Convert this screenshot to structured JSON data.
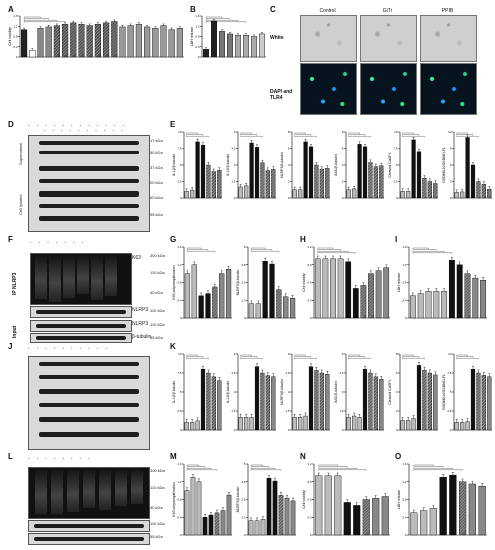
{
  "panels": {
    "A": {
      "letter": "A"
    },
    "B": {
      "letter": "B"
    },
    "C": {
      "letter": "C",
      "columns": [
        "Control",
        "GiTr",
        "PPIB"
      ],
      "rows": [
        "White",
        "DAPI and TLR4"
      ]
    },
    "D": {
      "letter": "D",
      "mw": [
        "17 kDa",
        "50 kDa",
        "37 kDa",
        "20 kDa",
        "60 kDa",
        "55 kDa"
      ],
      "sides": [
        "Supernatant",
        "Cell lysates"
      ]
    },
    "E": {
      "letter": "E"
    },
    "F": {
      "letter": "F",
      "mw": [
        "300 kDa",
        "110 kDa",
        "40 kDa",
        "110 kDa",
        "110 kDa",
        "55 kDa"
      ],
      "ip": "IP NLRP3",
      "input": "Input",
      "rows": [
        "K63",
        "NLRP3",
        "NLRP3",
        "β-tubulin"
      ]
    },
    "G": {
      "letter": "G"
    },
    "H": {
      "letter": "H"
    },
    "I": {
      "letter": "I"
    },
    "J": {
      "letter": "J"
    },
    "K": {
      "letter": "K"
    },
    "L": {
      "letter": "L",
      "mw": [
        "300 kDa",
        "110 kDa",
        "40 kDa",
        "110 kDa",
        "55 kDa"
      ]
    },
    "M": {
      "letter": "M"
    },
    "N": {
      "letter": "N"
    },
    "O": {
      "letter": "O"
    }
  },
  "chart_data": [
    {
      "id": "A",
      "type": "bar",
      "ylabel": "Cell viability",
      "ylim": [
        0,
        1.5
      ],
      "values": [
        1.0,
        0.25,
        1.05,
        1.1,
        1.15,
        1.2,
        1.25,
        1.2,
        1.15,
        1.2,
        1.25,
        1.3,
        1.1,
        1.15,
        1.2,
        1.1,
        1.05,
        1.15,
        1.0,
        1.05
      ],
      "colors": [
        "#222",
        "#fff",
        "#888",
        "#888",
        "#555",
        "#555",
        "#555",
        "#555",
        "#555",
        "#555",
        "#555",
        "#555",
        "#999",
        "#999",
        "#999",
        "#999",
        "#999",
        "#999",
        "#999",
        "#999"
      ]
    },
    {
      "id": "B",
      "type": "bar",
      "ylabel": "LDH release",
      "ylim": [
        0,
        1.6
      ],
      "values": [
        0.3,
        1.4,
        1.0,
        0.9,
        0.85,
        0.85,
        0.8,
        0.9
      ],
      "colors": [
        "#222",
        "#222",
        "#777",
        "#777",
        "#aaa",
        "#aaa",
        "#aaa",
        "#ccc"
      ]
    },
    {
      "id": "E1",
      "type": "bar",
      "ylabel": "IL-1β/β-tubulin",
      "ylim": [
        0,
        10
      ],
      "values": [
        1,
        1.2,
        8.5,
        8,
        5,
        4,
        4.2
      ],
      "colors": [
        "#bbb",
        "#bbb",
        "#111",
        "#111",
        "#666",
        "#666",
        "#666"
      ]
    },
    {
      "id": "E2",
      "type": "bar",
      "ylabel": "IL-18/β-tubulin",
      "ylim": [
        0,
        6
      ],
      "values": [
        1,
        1.1,
        5,
        4.6,
        3.2,
        2.5,
        2.6
      ],
      "colors": [
        "#bbb",
        "#bbb",
        "#111",
        "#111",
        "#666",
        "#666",
        "#666"
      ]
    },
    {
      "id": "E3",
      "type": "bar",
      "ylabel": "NLRP3/β-tubulin",
      "ylim": [
        0,
        8
      ],
      "values": [
        1,
        1,
        6.8,
        6.2,
        4,
        3.5,
        3.6
      ],
      "colors": [
        "#bbb",
        "#bbb",
        "#111",
        "#111",
        "#666",
        "#666",
        "#666"
      ]
    },
    {
      "id": "E4",
      "type": "bar",
      "ylabel": "ASC/β-tubulin",
      "ylim": [
        0,
        8
      ],
      "values": [
        1,
        1.1,
        6.5,
        6.2,
        4.3,
        3.8,
        3.9
      ],
      "colors": [
        "#bbb",
        "#bbb",
        "#111",
        "#111",
        "#666",
        "#666",
        "#666"
      ]
    },
    {
      "id": "E5",
      "type": "bar",
      "ylabel": "Cleaved CASP1",
      "ylim": [
        0,
        10
      ],
      "values": [
        1,
        1,
        8.8,
        7,
        3,
        2.5,
        2.2
      ],
      "colors": [
        "#bbb",
        "#bbb",
        "#111",
        "#111",
        "#666",
        "#666",
        "#666"
      ]
    },
    {
      "id": "E6",
      "type": "bar",
      "ylabel": "GSDMD-N/GSDMD-FL",
      "ylim": [
        0,
        12
      ],
      "values": [
        1,
        1.1,
        11,
        6,
        3,
        2.5,
        1.6
      ],
      "colors": [
        "#bbb",
        "#bbb",
        "#111",
        "#111",
        "#666",
        "#666",
        "#666"
      ]
    },
    {
      "id": "G1",
      "type": "bar",
      "ylabel": "K63 polyubiquitination",
      "ylim": [
        0,
        1.6
      ],
      "values": [
        1,
        1.2,
        0.5,
        0.55,
        0.7,
        1.0,
        1.1
      ],
      "colors": [
        "#bbb",
        "#bbb",
        "#111",
        "#111",
        "#666",
        "#888",
        "#888"
      ]
    },
    {
      "id": "G2",
      "type": "bar",
      "ylabel": "NLRP3/β-tubulin",
      "ylim": [
        0,
        5
      ],
      "values": [
        1,
        1,
        4,
        3.8,
        2,
        1.5,
        1.4
      ],
      "colors": [
        "#bbb",
        "#bbb",
        "#111",
        "#111",
        "#666",
        "#888",
        "#888"
      ]
    },
    {
      "id": "H",
      "type": "bar",
      "ylabel": "Cell viability",
      "ylim": [
        0,
        1.2
      ],
      "values": [
        1,
        1,
        1,
        1,
        0.95,
        0.5,
        0.55,
        0.75,
        0.8,
        0.85
      ],
      "colors": [
        "#bbb",
        "#bbb",
        "#bbb",
        "#bbb",
        "#111",
        "#111",
        "#666",
        "#666",
        "#888",
        "#888"
      ]
    },
    {
      "id": "I",
      "type": "bar",
      "ylabel": "LDH release",
      "ylim": [
        0,
        1.6
      ],
      "values": [
        0.5,
        0.55,
        0.6,
        0.6,
        0.6,
        1.3,
        1.2,
        1.0,
        0.9,
        0.85
      ],
      "colors": [
        "#bbb",
        "#bbb",
        "#bbb",
        "#bbb",
        "#bbb",
        "#111",
        "#111",
        "#666",
        "#888",
        "#888"
      ]
    },
    {
      "id": "K1",
      "type": "bar",
      "ylabel": "IL-1β/β-tubulin",
      "ylim": [
        0,
        10
      ],
      "values": [
        1,
        1,
        1.2,
        8,
        7.5,
        7,
        6.5
      ],
      "colors": [
        "#bbb",
        "#bbb",
        "#bbb",
        "#111",
        "#666",
        "#666",
        "#888"
      ]
    },
    {
      "id": "K2",
      "type": "bar",
      "ylabel": "IL-18/β-tubulin",
      "ylim": [
        0,
        6
      ],
      "values": [
        1,
        1,
        1,
        5,
        4.5,
        4.3,
        4.2
      ],
      "colors": [
        "#bbb",
        "#bbb",
        "#bbb",
        "#111",
        "#666",
        "#666",
        "#888"
      ]
    },
    {
      "id": "K3",
      "type": "bar",
      "ylabel": "NLRP3/β-tubulin",
      "ylim": [
        0,
        6
      ],
      "values": [
        1,
        1,
        1.1,
        5,
        4.7,
        4.5,
        4.4
      ],
      "colors": [
        "#bbb",
        "#bbb",
        "#bbb",
        "#111",
        "#666",
        "#666",
        "#888"
      ]
    },
    {
      "id": "K4",
      "type": "bar",
      "ylabel": "ASC/β-tubulin",
      "ylim": [
        0,
        6
      ],
      "values": [
        1,
        1.1,
        1,
        4.8,
        4.5,
        4.2,
        4.0
      ],
      "colors": [
        "#bbb",
        "#bbb",
        "#bbb",
        "#111",
        "#666",
        "#666",
        "#888"
      ]
    },
    {
      "id": "K5",
      "type": "bar",
      "ylabel": "Cleaved CASP1",
      "ylim": [
        0,
        8
      ],
      "values": [
        1,
        1,
        1.2,
        6.8,
        6.3,
        6,
        5.8
      ],
      "colors": [
        "#bbb",
        "#bbb",
        "#bbb",
        "#111",
        "#666",
        "#666",
        "#888"
      ]
    },
    {
      "id": "K6",
      "type": "bar",
      "ylabel": "GSDMD-N/GSDMD-FL",
      "ylim": [
        0,
        10
      ],
      "values": [
        1,
        1,
        1.1,
        8,
        7.5,
        7.2,
        7
      ],
      "colors": [
        "#bbb",
        "#bbb",
        "#bbb",
        "#111",
        "#666",
        "#666",
        "#888"
      ]
    },
    {
      "id": "M1",
      "type": "bar",
      "ylabel": "K63 polyubiquitination",
      "ylim": [
        0,
        1.6
      ],
      "values": [
        1,
        1.3,
        1.2,
        0.4,
        0.45,
        0.5,
        0.55,
        0.9
      ],
      "colors": [
        "#bbb",
        "#bbb",
        "#bbb",
        "#111",
        "#111",
        "#666",
        "#888",
        "#888"
      ]
    },
    {
      "id": "M2",
      "type": "bar",
      "ylabel": "NLRP3/β-tubulin",
      "ylim": [
        0,
        5
      ],
      "values": [
        1,
        1,
        1.1,
        4,
        3.8,
        2.8,
        2.6,
        2.4
      ],
      "colors": [
        "#bbb",
        "#bbb",
        "#bbb",
        "#111",
        "#111",
        "#666",
        "#888",
        "#888"
      ]
    },
    {
      "id": "N",
      "type": "bar",
      "ylabel": "Cell viability",
      "ylim": [
        0,
        1.2
      ],
      "values": [
        1,
        1,
        1,
        0.55,
        0.5,
        0.6,
        0.62,
        0.65
      ],
      "colors": [
        "#bbb",
        "#bbb",
        "#bbb",
        "#111",
        "#111",
        "#666",
        "#888",
        "#888"
      ]
    },
    {
      "id": "O",
      "type": "bar",
      "ylabel": "LDH release",
      "ylim": [
        0,
        1.6
      ],
      "values": [
        0.5,
        0.55,
        0.6,
        1.3,
        1.35,
        1.2,
        1.15,
        1.1
      ],
      "colors": [
        "#bbb",
        "#bbb",
        "#bbb",
        "#111",
        "#111",
        "#666",
        "#888",
        "#888"
      ]
    }
  ]
}
